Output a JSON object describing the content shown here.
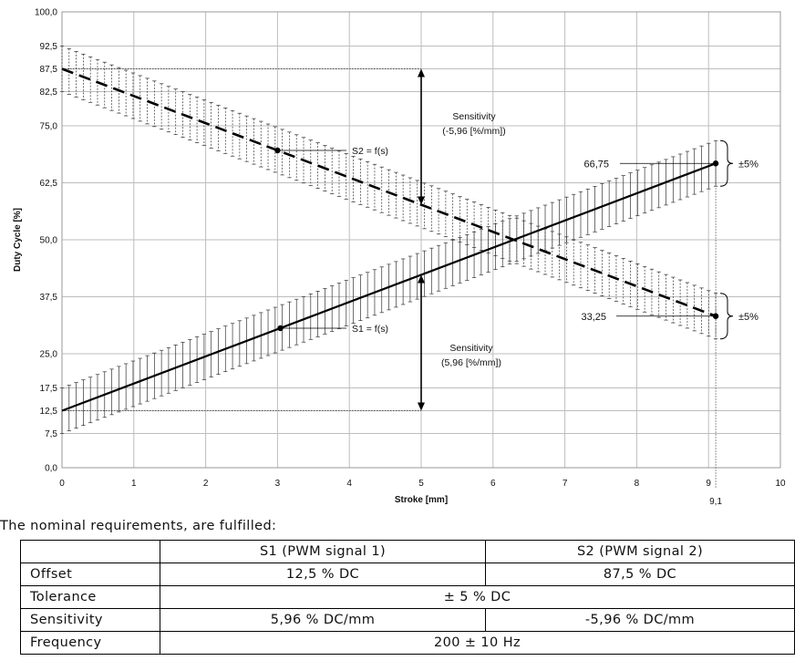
{
  "chart_data": {
    "type": "line",
    "xlabel": "Stroke [mm]",
    "ylabel": "Duty Cycle [%]",
    "xlim": [
      0,
      10
    ],
    "ylim": [
      0,
      100
    ],
    "x_ticks": [
      "0",
      "1",
      "2",
      "3",
      "4",
      "5",
      "6",
      "7",
      "8",
      "9",
      "10"
    ],
    "y_ticks": [
      "0,0",
      "7,5",
      "12,5",
      "17,5",
      "25,0",
      "37,5",
      "50,0",
      "62,5",
      "75,0",
      "82,5",
      "87,5",
      "92,5",
      "100,0"
    ],
    "y_tick_values": [
      0,
      7.5,
      12.5,
      17.5,
      25,
      37.5,
      50,
      62.5,
      75,
      82.5,
      87.5,
      92.5,
      100
    ],
    "grid": true,
    "series": [
      {
        "name": "S1 = f(s)",
        "x": [
          0,
          9.1
        ],
        "y": [
          12.5,
          66.75
        ],
        "tolerance": 5,
        "style": "solid",
        "marker_x": 3.04,
        "marker_y": 30.6
      },
      {
        "name": "S2 = f(s)",
        "x": [
          0,
          9.1
        ],
        "y": [
          87.5,
          33.25
        ],
        "tolerance": 5,
        "style": "dashed",
        "marker_x": 3.0,
        "marker_y": 69.6
      }
    ],
    "annotations": {
      "s2_sensitivity_1": "Sensitivity",
      "s2_sensitivity_2": "(-5,96 [%/mm])",
      "s1_sensitivity_1": "Sensitivity",
      "s1_sensitivity_2": "(5,96 [%/mm])",
      "s1_end_value": "66,75",
      "s2_end_value": "33,25",
      "tol_top": "±5%",
      "tol_bottom": "±5%",
      "end_stroke": "9,1"
    }
  },
  "caption": "The nominal requirements, are fulfilled:",
  "table": {
    "header": [
      "",
      "S1 (PWM signal 1)",
      "S2 (PWM signal 2)"
    ],
    "offset": [
      "Offset",
      "12,5 % DC",
      "87,5 % DC"
    ],
    "tolerance": [
      "Tolerance",
      "± 5 % DC"
    ],
    "sensitivity": [
      "Sensitivity",
      "5,96 % DC/mm",
      "-5,96 % DC/mm"
    ],
    "frequency": [
      "Frequency",
      "200 ± 10 Hz"
    ]
  }
}
